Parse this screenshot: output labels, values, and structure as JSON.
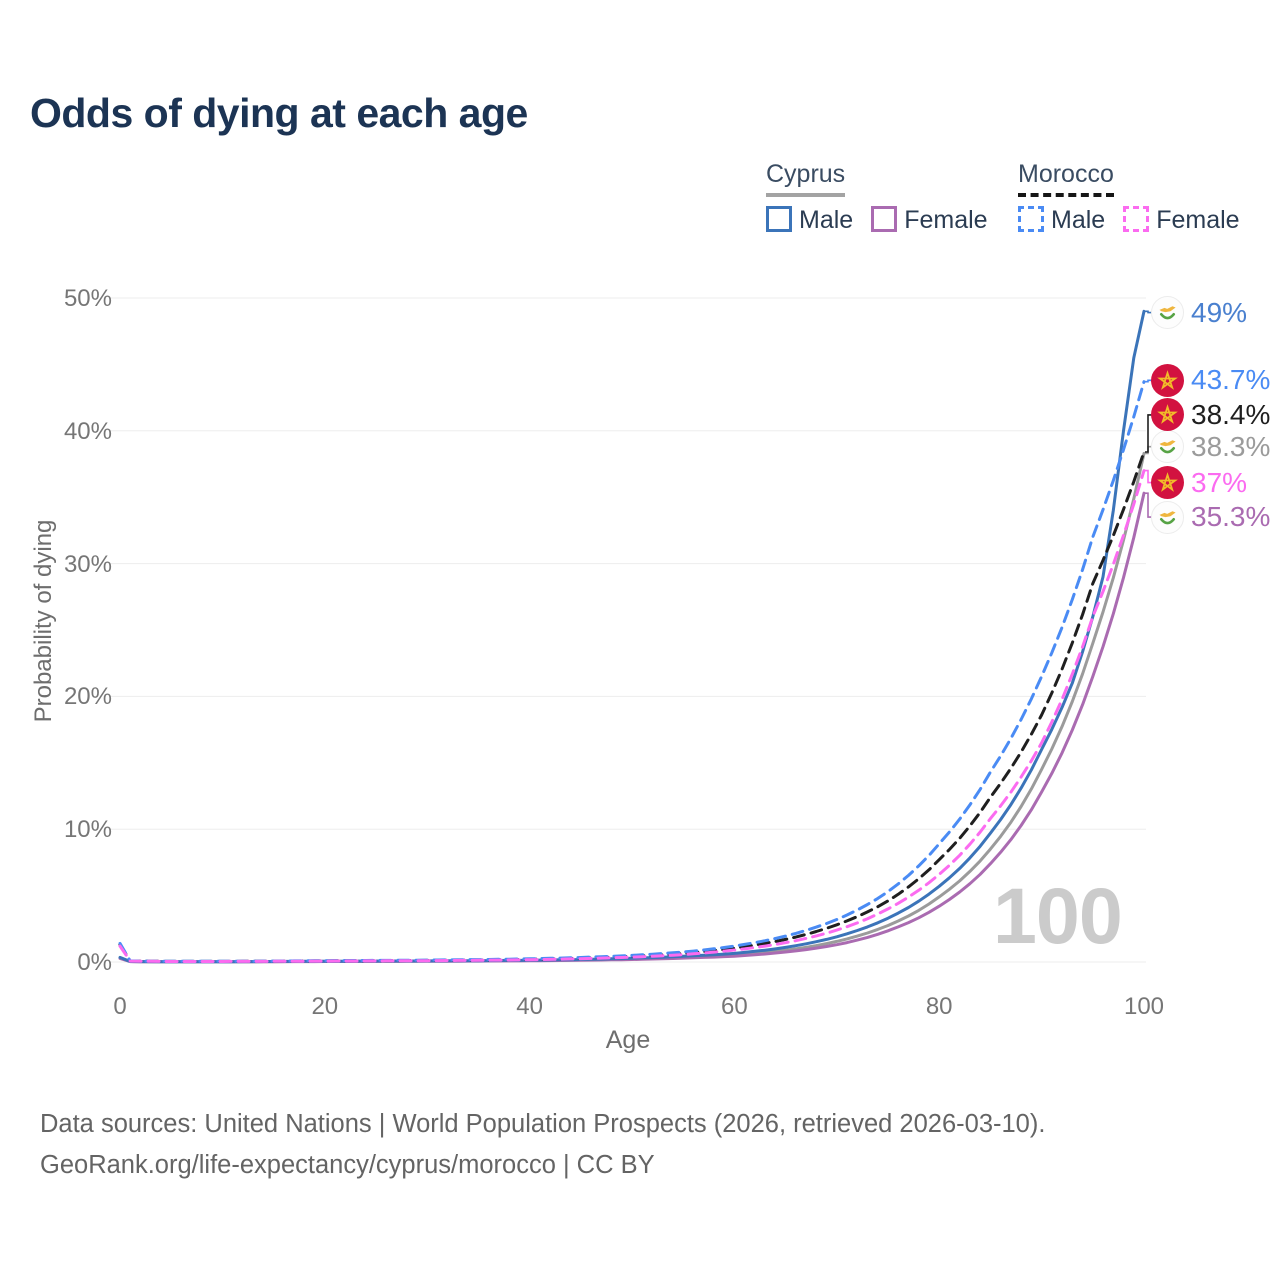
{
  "title": "Odds of dying at each age",
  "legend": {
    "groups": [
      {
        "id": "cyprus",
        "name": "Cyprus",
        "line_style": "solid",
        "underline_color": "#a3a3a3",
        "items": [
          {
            "id": "cyprus-male",
            "label": "Male",
            "color": "#3b74b9"
          },
          {
            "id": "cyprus-female",
            "label": "Female",
            "color": "#aa6bb1"
          }
        ]
      },
      {
        "id": "morocco",
        "name": "Morocco",
        "line_style": "dashed",
        "underline_color": "#161616",
        "items": [
          {
            "id": "morocco-male",
            "label": "Male",
            "color": "#4a8bf4"
          },
          {
            "id": "morocco-female",
            "label": "Female",
            "color": "#fb6bf0"
          }
        ]
      }
    ]
  },
  "watermark": "100",
  "footer": {
    "line1": "Data sources: United Nations | World Population Prospects (2026, retrieved 2026-03-10).",
    "line2": "GeoRank.org/life-expectancy/cyprus/morocco | CC BY"
  },
  "chart_data": {
    "type": "line",
    "title": "Odds of dying at each age",
    "xlabel": "Age",
    "ylabel": "Probability of dying",
    "xlim": [
      0,
      100
    ],
    "ylim": [
      0,
      50
    ],
    "grid": "horizontal",
    "legend_position": "top-right",
    "x_ticks": [
      {
        "age": 0,
        "label": "0"
      },
      {
        "age": 20,
        "label": "20"
      },
      {
        "age": 40,
        "label": "40"
      },
      {
        "age": 60,
        "label": "60"
      },
      {
        "age": 80,
        "label": "80"
      },
      {
        "age": 100,
        "label": "100"
      }
    ],
    "y_ticks": [
      {
        "pct": 0,
        "label": "0%"
      },
      {
        "pct": 10,
        "label": "10%"
      },
      {
        "pct": 20,
        "label": "20%"
      },
      {
        "pct": 30,
        "label": "30%"
      },
      {
        "pct": 40,
        "label": "40%"
      },
      {
        "pct": 50,
        "label": "50%"
      }
    ],
    "series": [
      {
        "id": "cyprus-total",
        "name": "Cyprus",
        "country": "Cyprus",
        "sex": "All",
        "color": "#9b9b9b",
        "label_color": "#9b9b9b",
        "dash": "solid",
        "flag": "cyprus",
        "end_label": "38.3%",
        "end_value_pct": 38.3,
        "label_pct": 38.8,
        "points": [
          [
            0,
            0.3
          ],
          [
            1,
            0.035
          ],
          [
            5,
            0.017
          ],
          [
            10,
            0.017
          ],
          [
            15,
            0.03
          ],
          [
            20,
            0.045
          ],
          [
            25,
            0.055
          ],
          [
            30,
            0.065
          ],
          [
            35,
            0.08
          ],
          [
            40,
            0.11
          ],
          [
            45,
            0.16
          ],
          [
            50,
            0.23
          ],
          [
            55,
            0.35
          ],
          [
            60,
            0.52
          ],
          [
            65,
            0.88
          ],
          [
            70,
            1.55
          ],
          [
            75,
            2.75
          ],
          [
            80,
            4.9
          ],
          [
            85,
            8.5
          ],
          [
            90,
            14.5
          ],
          [
            95,
            24
          ],
          [
            100,
            38.3
          ]
        ]
      },
      {
        "id": "cyprus-female",
        "name": "Cyprus Female",
        "country": "Cyprus",
        "sex": "Female",
        "color": "#aa6bb1",
        "label_color": "#aa6bb1",
        "dash": "solid",
        "flag": "cyprus",
        "end_label": "35.3%",
        "end_value_pct": 35.3,
        "label_pct": 33.5,
        "points": [
          [
            0,
            0.26
          ],
          [
            1,
            0.03
          ],
          [
            5,
            0.015
          ],
          [
            10,
            0.015
          ],
          [
            15,
            0.025
          ],
          [
            20,
            0.035
          ],
          [
            25,
            0.045
          ],
          [
            30,
            0.055
          ],
          [
            35,
            0.07
          ],
          [
            40,
            0.09
          ],
          [
            45,
            0.13
          ],
          [
            50,
            0.19
          ],
          [
            55,
            0.29
          ],
          [
            60,
            0.44
          ],
          [
            65,
            0.75
          ],
          [
            70,
            1.3
          ],
          [
            75,
            2.35
          ],
          [
            80,
            4.2
          ],
          [
            85,
            7.4
          ],
          [
            90,
            12.8
          ],
          [
            95,
            21.5
          ],
          [
            100,
            35.3
          ]
        ]
      },
      {
        "id": "cyprus-male",
        "name": "Cyprus Male",
        "country": "Cyprus",
        "sex": "Male",
        "color": "#3b74b9",
        "label_color": "#4a80cf",
        "dash": "solid",
        "flag": "cyprus",
        "end_label": "49%",
        "end_value_pct": 49,
        "label_pct": 48.9,
        "points": [
          [
            0,
            0.35
          ],
          [
            1,
            0.04
          ],
          [
            5,
            0.02
          ],
          [
            10,
            0.02
          ],
          [
            15,
            0.04
          ],
          [
            20,
            0.06
          ],
          [
            25,
            0.07
          ],
          [
            30,
            0.08
          ],
          [
            35,
            0.1
          ],
          [
            40,
            0.13
          ],
          [
            45,
            0.19
          ],
          [
            50,
            0.28
          ],
          [
            55,
            0.43
          ],
          [
            60,
            0.65
          ],
          [
            65,
            1.1
          ],
          [
            70,
            1.9
          ],
          [
            75,
            3.3
          ],
          [
            80,
            5.7
          ],
          [
            85,
            9.7
          ],
          [
            90,
            16
          ],
          [
            93,
            21
          ],
          [
            95,
            26
          ],
          [
            96,
            29
          ],
          [
            97,
            34
          ],
          [
            98,
            40
          ],
          [
            99,
            45.5
          ],
          [
            100,
            49
          ]
        ]
      },
      {
        "id": "morocco-total",
        "name": "Morocco",
        "country": "Morocco",
        "sex": "All",
        "color": "#1f1f1f",
        "label_color": "#1f1f1f",
        "dash": "dashed",
        "flag": "morocco",
        "end_label": "38.4%",
        "end_value_pct": 38.4,
        "label_pct": 41.2,
        "points": [
          [
            0,
            1.3
          ],
          [
            1,
            0.075
          ],
          [
            5,
            0.045
          ],
          [
            10,
            0.045
          ],
          [
            15,
            0.06
          ],
          [
            20,
            0.085
          ],
          [
            25,
            0.1
          ],
          [
            30,
            0.12
          ],
          [
            35,
            0.15
          ],
          [
            40,
            0.2
          ],
          [
            45,
            0.29
          ],
          [
            50,
            0.43
          ],
          [
            55,
            0.64
          ],
          [
            60,
            1.05
          ],
          [
            65,
            1.7
          ],
          [
            70,
            2.8
          ],
          [
            75,
            4.6
          ],
          [
            80,
            7.7
          ],
          [
            85,
            12.4
          ],
          [
            90,
            18.6
          ],
          [
            95,
            28.5
          ],
          [
            100,
            38.4
          ]
        ]
      },
      {
        "id": "morocco-male",
        "name": "Morocco Male",
        "country": "Morocco",
        "sex": "Male",
        "color": "#4a8bf4",
        "label_color": "#4a8bf4",
        "dash": "dashed",
        "flag": "morocco",
        "end_label": "43.7%",
        "end_value_pct": 43.7,
        "label_pct": 43.8,
        "points": [
          [
            0,
            1.4
          ],
          [
            1,
            0.08
          ],
          [
            5,
            0.05
          ],
          [
            10,
            0.05
          ],
          [
            15,
            0.07
          ],
          [
            20,
            0.1
          ],
          [
            25,
            0.12
          ],
          [
            30,
            0.14
          ],
          [
            35,
            0.18
          ],
          [
            40,
            0.24
          ],
          [
            45,
            0.34
          ],
          [
            50,
            0.5
          ],
          [
            55,
            0.75
          ],
          [
            60,
            1.2
          ],
          [
            65,
            1.95
          ],
          [
            70,
            3.2
          ],
          [
            75,
            5.3
          ],
          [
            80,
            8.9
          ],
          [
            85,
            14.3
          ],
          [
            90,
            21.5
          ],
          [
            95,
            32
          ],
          [
            100,
            43.7
          ]
        ]
      },
      {
        "id": "morocco-female",
        "name": "Morocco Female",
        "country": "Morocco",
        "sex": "Female",
        "color": "#fb6bf0",
        "label_color": "#fb6bf0",
        "dash": "dashed",
        "flag": "morocco",
        "end_label": "37%",
        "end_value_pct": 37,
        "label_pct": 36.1,
        "points": [
          [
            0,
            1.2
          ],
          [
            1,
            0.07
          ],
          [
            5,
            0.04
          ],
          [
            10,
            0.04
          ],
          [
            15,
            0.05
          ],
          [
            20,
            0.07
          ],
          [
            25,
            0.085
          ],
          [
            30,
            0.1
          ],
          [
            35,
            0.13
          ],
          [
            40,
            0.17
          ],
          [
            45,
            0.25
          ],
          [
            50,
            0.37
          ],
          [
            55,
            0.56
          ],
          [
            60,
            0.9
          ],
          [
            65,
            1.45
          ],
          [
            70,
            2.4
          ],
          [
            75,
            4
          ],
          [
            80,
            6.6
          ],
          [
            85,
            10.8
          ],
          [
            90,
            16.5
          ],
          [
            95,
            26
          ],
          [
            100,
            37
          ]
        ]
      }
    ]
  }
}
